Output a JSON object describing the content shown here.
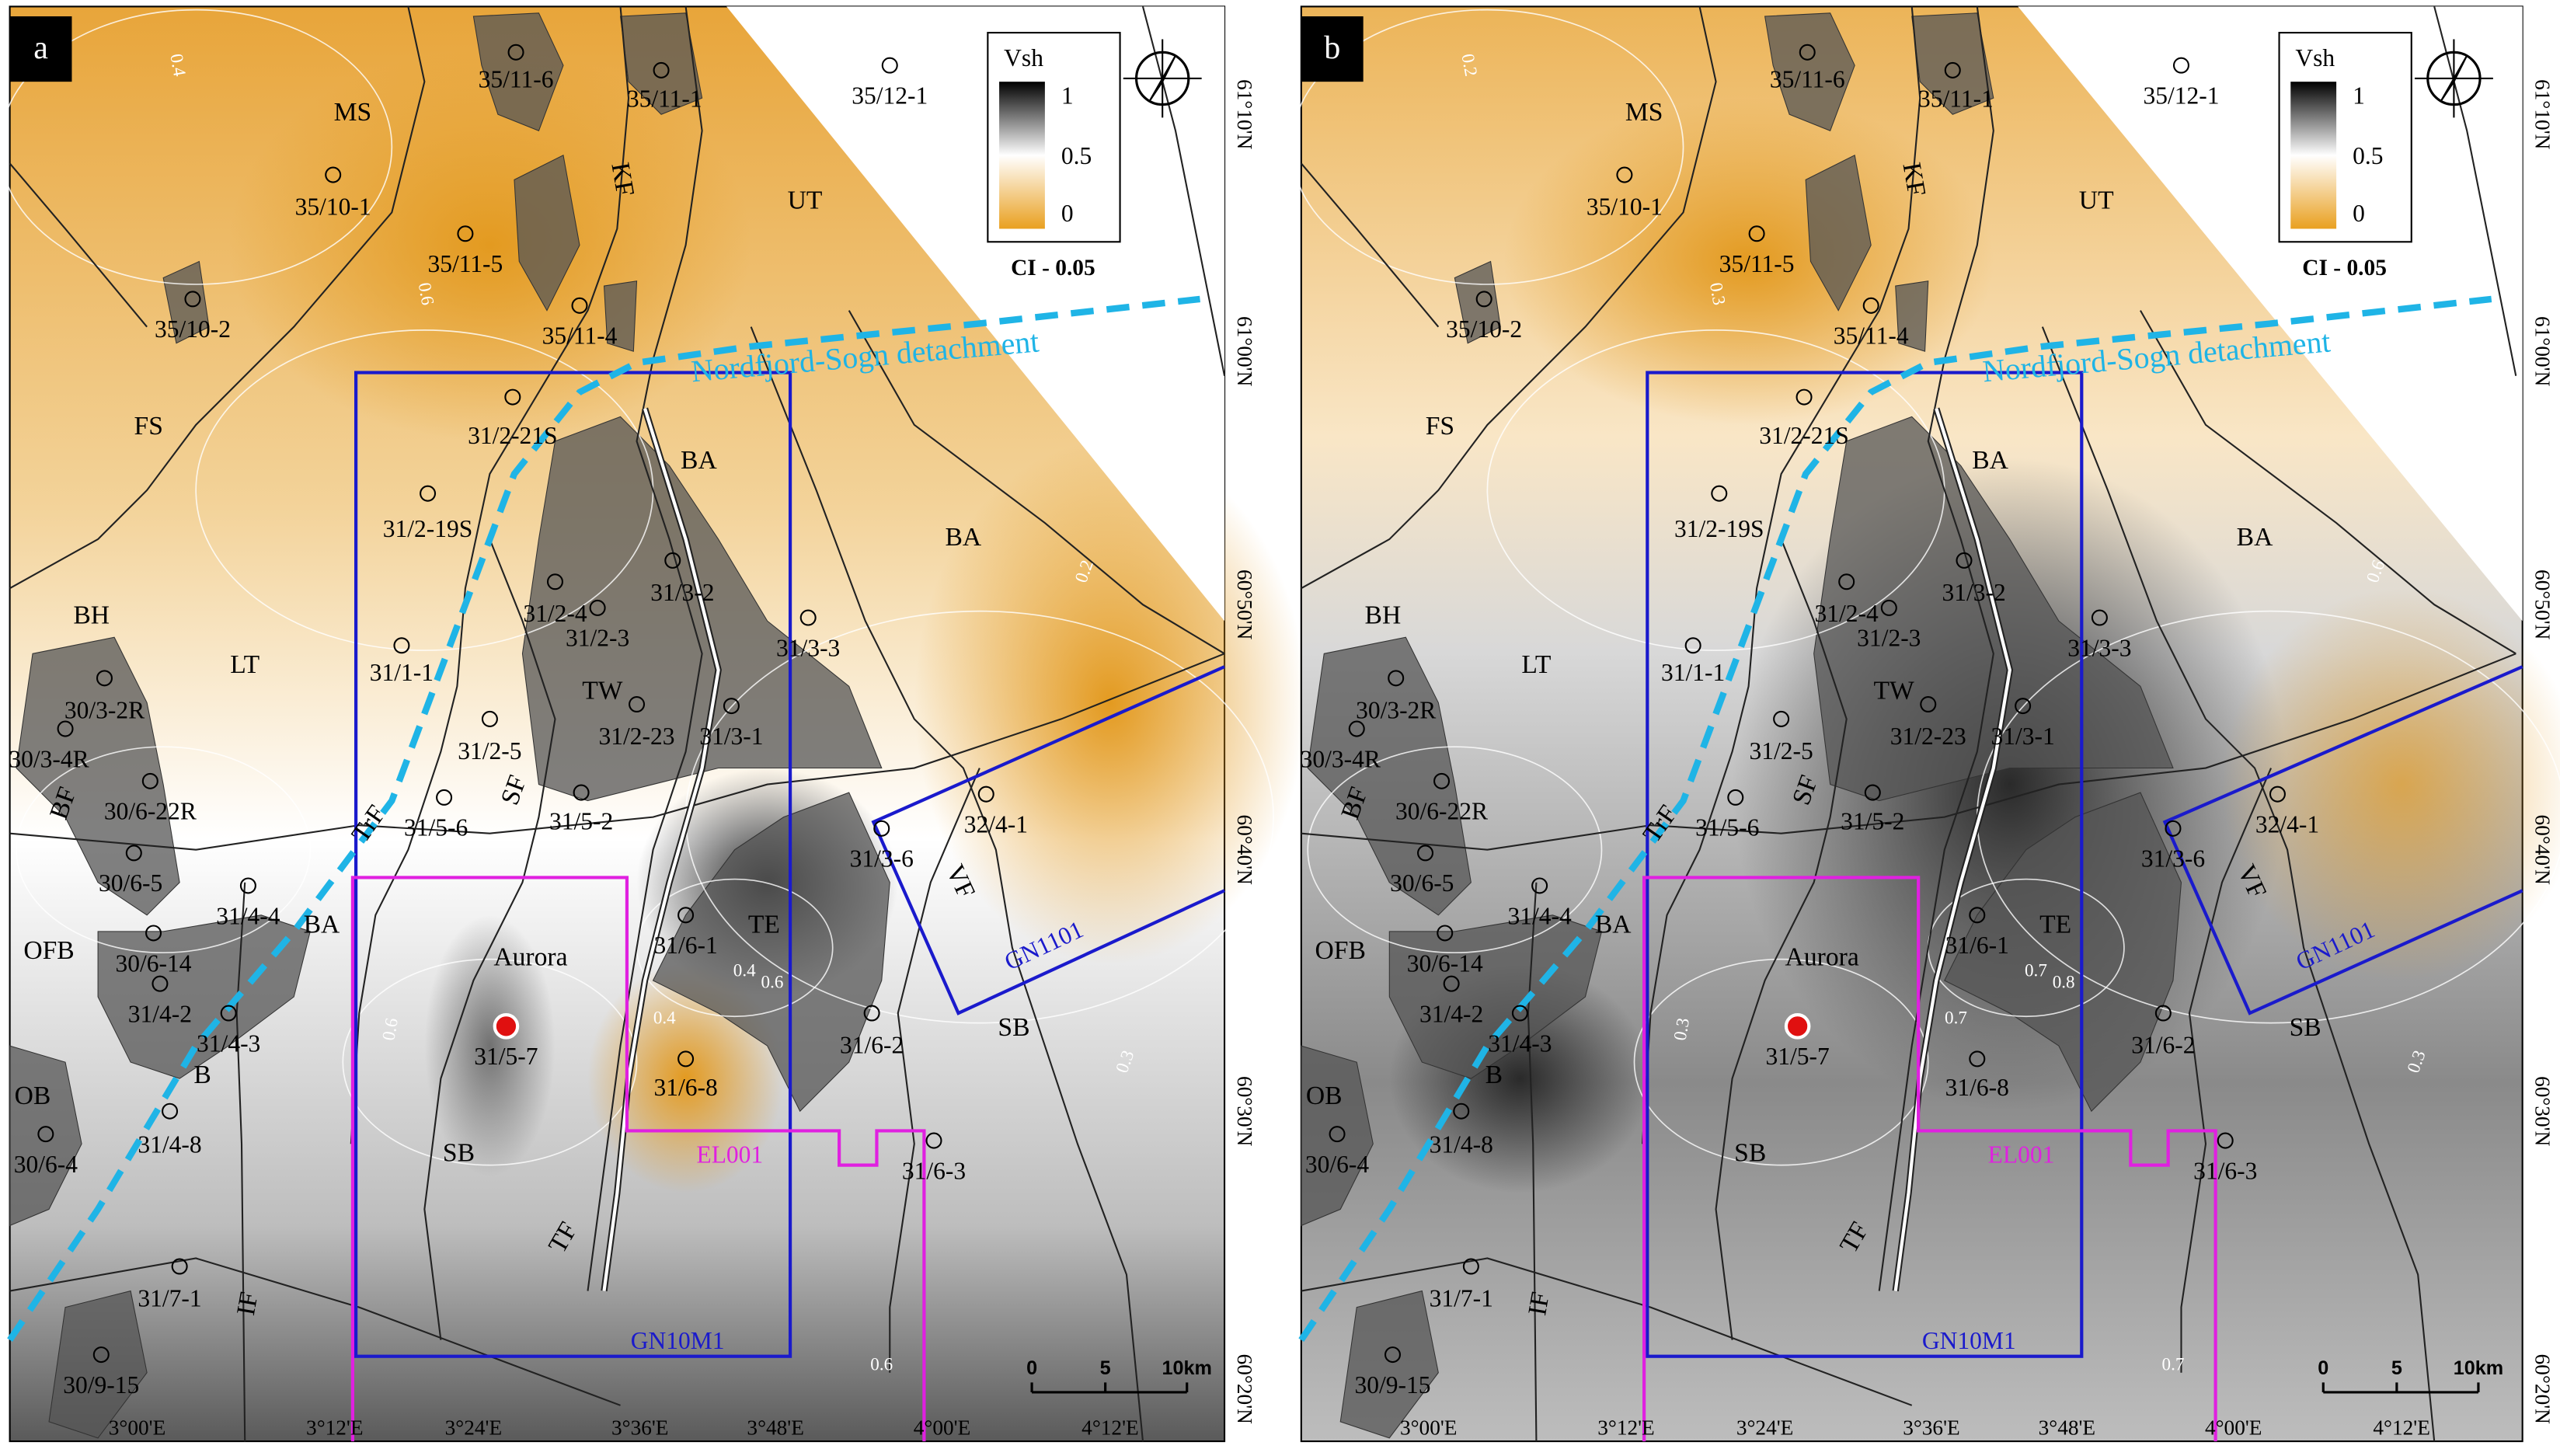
{
  "panels": [
    {
      "letter": "a",
      "contour_labels": [
        "0.4",
        "0.6",
        "0.6",
        "0.4",
        "0.4",
        "0.2",
        "0.6",
        "0.6",
        "0.3"
      ]
    },
    {
      "letter": "b",
      "contour_labels": [
        "0.2",
        "0.3",
        "0.3",
        "0.7",
        "0.7",
        "0.6",
        "0.8",
        "0.7",
        "0.3"
      ]
    }
  ],
  "legend": {
    "title": "Vsh",
    "ticks": [
      "1",
      "0.5",
      "0"
    ],
    "contour_interval": "CI - 0.05"
  },
  "scale_bar": [
    "0",
    "5",
    "10km"
  ],
  "latitude_labels": [
    "61°10'N",
    "61°00'N",
    "60°50'N",
    "60°40'N",
    "60°30'N",
    "60°20'N"
  ],
  "longitude_labels": [
    "3°00'E",
    "3°12'E",
    "3°24'E",
    "3°36'E",
    "3°48'E",
    "4°00'E",
    "4°12'E"
  ],
  "wells": [
    "35/11-6",
    "35/11-1",
    "35/12-1",
    "35/10-1",
    "35/11-5",
    "35/10-2",
    "35/11-4",
    "31/2-21S",
    "31/2-19S",
    "31/3-2",
    "31/2-4",
    "31/2-3",
    "31/3-3",
    "31/1-1",
    "31/2-23",
    "31/3-1",
    "30/3-2R",
    "30/3-4R",
    "31/2-5",
    "30/6-22R",
    "31/5-6",
    "31/5-2",
    "32/4-1",
    "30/6-5",
    "31/3-6",
    "31/4-4",
    "30/6-14",
    "31/6-1",
    "31/4-2",
    "31/4-3",
    "31/5-7",
    "31/6-2",
    "31/6-8",
    "30/6-4",
    "31/4-8",
    "31/6-3",
    "31/7-1",
    "30/9-15"
  ],
  "areas": [
    "MS",
    "KF",
    "UT",
    "FS",
    "BA",
    "BA",
    "BH",
    "LT",
    "TW",
    "BF",
    "TrF",
    "SF",
    "OFB",
    "BA",
    "TE",
    "VF",
    "Aurora",
    "SB",
    "B",
    "OB",
    "TF",
    "SB",
    "IF"
  ],
  "detachment": "Nordfjord-Sogn detachment",
  "licences": [
    "GN10M1",
    "EL001",
    "GN1101"
  ]
}
